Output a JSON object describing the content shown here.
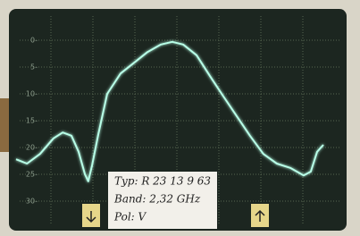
{
  "chart_data": {
    "type": "line",
    "x": [
      0.17,
      0.43,
      0.74,
      1.06,
      1.28,
      1.49,
      1.66,
      1.81,
      1.89,
      1.98,
      2.13,
      2.34,
      2.66,
      2.98,
      3.3,
      3.62,
      3.89,
      4.15,
      4.47,
      4.79,
      5.11,
      5.43,
      5.74,
      6.06,
      6.38,
      6.7,
      7.02,
      7.19,
      7.34,
      7.49
    ],
    "values": [
      22.2,
      23.0,
      21.2,
      18.3,
      17.2,
      17.8,
      20.8,
      25.0,
      26.3,
      23.3,
      17.5,
      10.0,
      6.2,
      4.2,
      2.2,
      0.8,
      0.3,
      0.8,
      2.8,
      6.7,
      10.5,
      14.2,
      17.8,
      21.2,
      23.0,
      23.8,
      25.2,
      24.5,
      20.8,
      19.5
    ],
    "color": "#b8ffe8",
    "xlim": [
      0,
      8
    ],
    "xticks": [
      1,
      2,
      3,
      4,
      5,
      6,
      7
    ],
    "ylim": [
      35,
      -5
    ],
    "yticks": [
      {
        "value": 0,
        "label": "0-"
      },
      {
        "value": 5,
        "label": "5-"
      },
      {
        "value": 10,
        "label": "10-"
      },
      {
        "value": 15,
        "label": "15-"
      },
      {
        "value": 20,
        "label": "20-"
      },
      {
        "value": 25,
        "label": "25-"
      },
      {
        "value": 30,
        "label": "30-"
      }
    ],
    "grid": true,
    "annotations": [
      "Typ: R 23 13 9 63",
      "Band: 2,32 GHz",
      "Pol: V"
    ]
  }
}
